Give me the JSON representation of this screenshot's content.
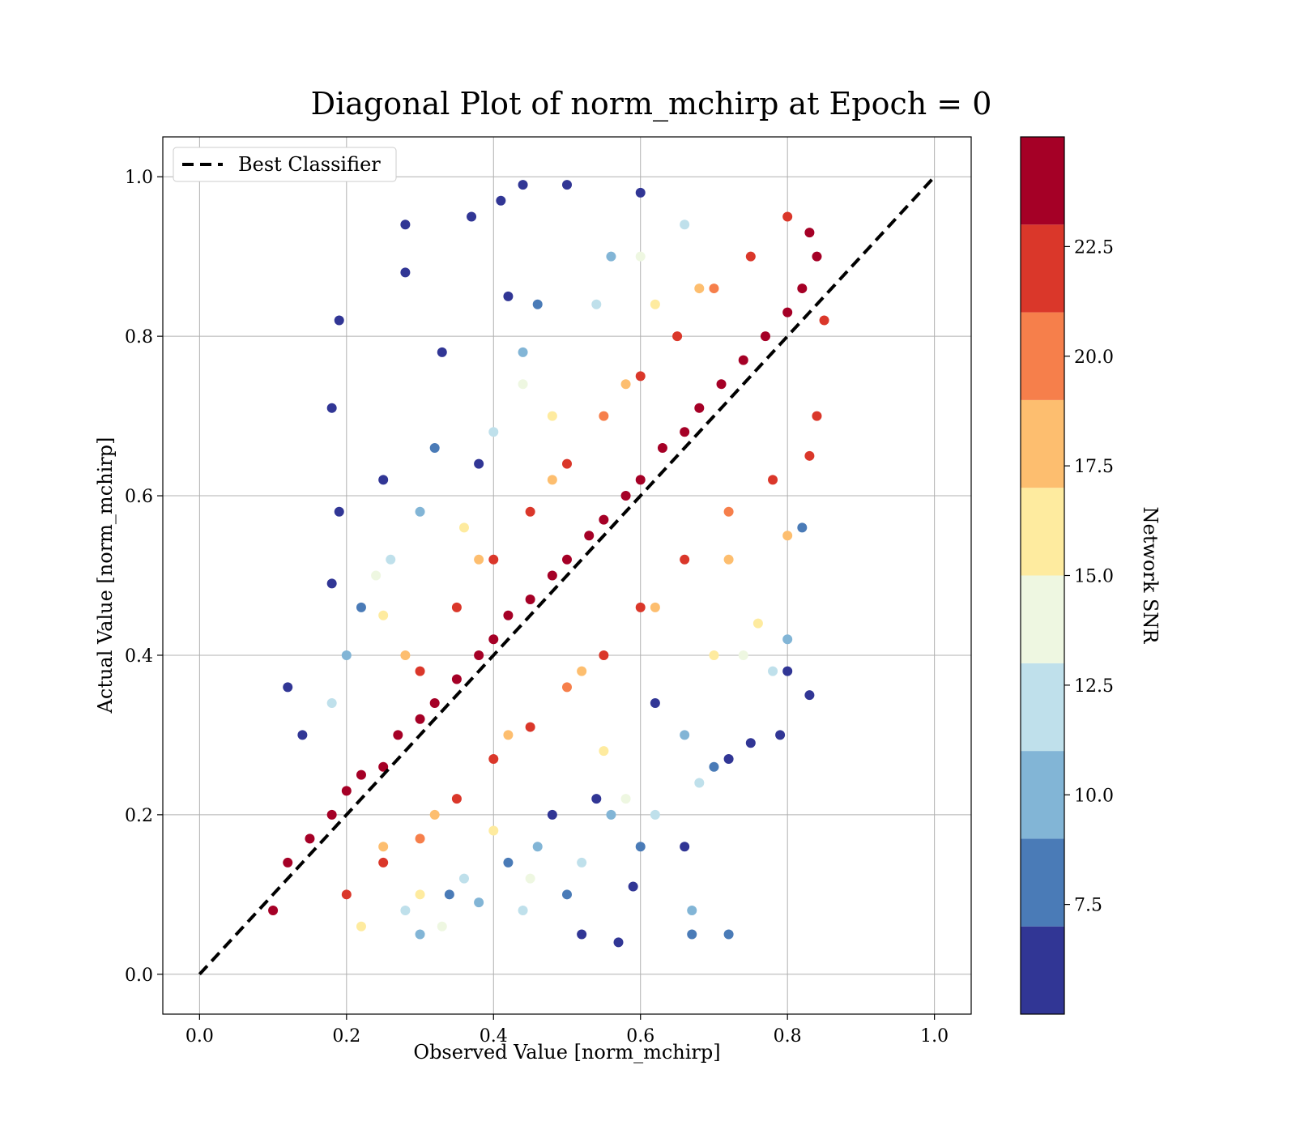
{
  "chart_data": {
    "type": "scatter",
    "title": "Diagonal Plot of norm_mchirp at Epoch = 0",
    "xlabel": "Observed Value [norm_mchirp]",
    "ylabel": "Actual Value [norm_mchirp]",
    "xlim": [
      -0.05,
      1.05
    ],
    "ylim": [
      -0.05,
      1.05
    ],
    "x_ticks": [
      "0.0",
      "0.2",
      "0.4",
      "0.6",
      "0.8",
      "1.0"
    ],
    "y_ticks": [
      "0.0",
      "0.2",
      "0.4",
      "0.6",
      "0.8",
      "1.0"
    ],
    "grid": true,
    "legend": {
      "placement": "top-left",
      "entries": [
        {
          "label": "Best Classifier",
          "style": "dashed",
          "color": "#000000"
        }
      ]
    },
    "reference_line": {
      "name": "Best Classifier",
      "x": [
        0.0,
        1.0
      ],
      "y": [
        0.0,
        1.0
      ]
    },
    "colorbar": {
      "label": "Network SNR",
      "range": [
        5.0,
        25.0
      ],
      "bins": [
        {
          "from": 5.0,
          "to": 7.0,
          "color": "#313695"
        },
        {
          "from": 7.0,
          "to": 9.0,
          "color": "#4a7bb7"
        },
        {
          "from": 9.0,
          "to": 11.0,
          "color": "#82b5d6"
        },
        {
          "from": 11.0,
          "to": 13.0,
          "color": "#bfe0eb"
        },
        {
          "from": 13.0,
          "to": 15.0,
          "color": "#eef7e1"
        },
        {
          "from": 15.0,
          "to": 17.0,
          "color": "#feeb9f"
        },
        {
          "from": 17.0,
          "to": 19.0,
          "color": "#fdbe6f"
        },
        {
          "from": 19.0,
          "to": 21.0,
          "color": "#f67f4b"
        },
        {
          "from": 21.0,
          "to": 23.0,
          "color": "#da372a"
        },
        {
          "from": 23.0,
          "to": 25.0,
          "color": "#a50026"
        }
      ],
      "tick_values": [
        7.5,
        10.0,
        12.5,
        15.0,
        17.5,
        20.0,
        22.5
      ],
      "tick_labels": [
        "7.5",
        "10.0",
        "12.5",
        "15.0",
        "17.5",
        "20.0",
        "22.5"
      ]
    },
    "points": [
      {
        "x": 0.1,
        "y": 0.08,
        "snr": 24
      },
      {
        "x": 0.12,
        "y": 0.14,
        "snr": 24
      },
      {
        "x": 0.15,
        "y": 0.17,
        "snr": 24
      },
      {
        "x": 0.18,
        "y": 0.2,
        "snr": 23
      },
      {
        "x": 0.2,
        "y": 0.23,
        "snr": 24
      },
      {
        "x": 0.22,
        "y": 0.25,
        "snr": 24
      },
      {
        "x": 0.25,
        "y": 0.26,
        "snr": 24
      },
      {
        "x": 0.27,
        "y": 0.3,
        "snr": 24
      },
      {
        "x": 0.3,
        "y": 0.32,
        "snr": 24
      },
      {
        "x": 0.32,
        "y": 0.34,
        "snr": 24
      },
      {
        "x": 0.35,
        "y": 0.37,
        "snr": 24
      },
      {
        "x": 0.38,
        "y": 0.4,
        "snr": 24
      },
      {
        "x": 0.4,
        "y": 0.42,
        "snr": 24
      },
      {
        "x": 0.42,
        "y": 0.45,
        "snr": 24
      },
      {
        "x": 0.45,
        "y": 0.47,
        "snr": 24
      },
      {
        "x": 0.48,
        "y": 0.5,
        "snr": 24
      },
      {
        "x": 0.5,
        "y": 0.52,
        "snr": 24
      },
      {
        "x": 0.53,
        "y": 0.55,
        "snr": 24
      },
      {
        "x": 0.55,
        "y": 0.57,
        "snr": 24
      },
      {
        "x": 0.58,
        "y": 0.6,
        "snr": 24
      },
      {
        "x": 0.6,
        "y": 0.62,
        "snr": 24
      },
      {
        "x": 0.63,
        "y": 0.66,
        "snr": 24
      },
      {
        "x": 0.66,
        "y": 0.68,
        "snr": 24
      },
      {
        "x": 0.68,
        "y": 0.71,
        "snr": 24
      },
      {
        "x": 0.71,
        "y": 0.74,
        "snr": 24
      },
      {
        "x": 0.74,
        "y": 0.77,
        "snr": 24
      },
      {
        "x": 0.77,
        "y": 0.8,
        "snr": 24
      },
      {
        "x": 0.8,
        "y": 0.83,
        "snr": 24
      },
      {
        "x": 0.82,
        "y": 0.86,
        "snr": 24
      },
      {
        "x": 0.84,
        "y": 0.9,
        "snr": 24
      },
      {
        "x": 0.8,
        "y": 0.95,
        "snr": 22
      },
      {
        "x": 0.83,
        "y": 0.93,
        "snr": 23
      },
      {
        "x": 0.85,
        "y": 0.82,
        "snr": 22
      },
      {
        "x": 0.84,
        "y": 0.7,
        "snr": 22
      },
      {
        "x": 0.83,
        "y": 0.65,
        "snr": 21
      },
      {
        "x": 0.78,
        "y": 0.62,
        "snr": 22
      },
      {
        "x": 0.72,
        "y": 0.58,
        "snr": 20
      },
      {
        "x": 0.66,
        "y": 0.52,
        "snr": 21
      },
      {
        "x": 0.6,
        "y": 0.46,
        "snr": 22
      },
      {
        "x": 0.55,
        "y": 0.4,
        "snr": 21
      },
      {
        "x": 0.5,
        "y": 0.36,
        "snr": 20
      },
      {
        "x": 0.45,
        "y": 0.31,
        "snr": 22
      },
      {
        "x": 0.4,
        "y": 0.27,
        "snr": 21
      },
      {
        "x": 0.35,
        "y": 0.22,
        "snr": 22
      },
      {
        "x": 0.3,
        "y": 0.17,
        "snr": 20
      },
      {
        "x": 0.25,
        "y": 0.14,
        "snr": 22
      },
      {
        "x": 0.2,
        "y": 0.1,
        "snr": 21
      },
      {
        "x": 0.3,
        "y": 0.38,
        "snr": 21
      },
      {
        "x": 0.35,
        "y": 0.46,
        "snr": 22
      },
      {
        "x": 0.4,
        "y": 0.52,
        "snr": 21
      },
      {
        "x": 0.45,
        "y": 0.58,
        "snr": 22
      },
      {
        "x": 0.5,
        "y": 0.64,
        "snr": 21
      },
      {
        "x": 0.55,
        "y": 0.7,
        "snr": 20
      },
      {
        "x": 0.6,
        "y": 0.75,
        "snr": 22
      },
      {
        "x": 0.65,
        "y": 0.8,
        "snr": 21
      },
      {
        "x": 0.7,
        "y": 0.86,
        "snr": 20
      },
      {
        "x": 0.75,
        "y": 0.9,
        "snr": 22
      },
      {
        "x": 0.25,
        "y": 0.16,
        "snr": 18
      },
      {
        "x": 0.32,
        "y": 0.2,
        "snr": 17
      },
      {
        "x": 0.42,
        "y": 0.3,
        "snr": 18
      },
      {
        "x": 0.52,
        "y": 0.38,
        "snr": 17
      },
      {
        "x": 0.62,
        "y": 0.46,
        "snr": 18
      },
      {
        "x": 0.72,
        "y": 0.52,
        "snr": 17
      },
      {
        "x": 0.8,
        "y": 0.55,
        "snr": 18
      },
      {
        "x": 0.28,
        "y": 0.4,
        "snr": 18
      },
      {
        "x": 0.38,
        "y": 0.52,
        "snr": 17
      },
      {
        "x": 0.48,
        "y": 0.62,
        "snr": 18
      },
      {
        "x": 0.58,
        "y": 0.74,
        "snr": 17
      },
      {
        "x": 0.68,
        "y": 0.86,
        "snr": 18
      },
      {
        "x": 0.22,
        "y": 0.06,
        "snr": 16
      },
      {
        "x": 0.3,
        "y": 0.1,
        "snr": 16
      },
      {
        "x": 0.4,
        "y": 0.18,
        "snr": 15
      },
      {
        "x": 0.55,
        "y": 0.28,
        "snr": 16
      },
      {
        "x": 0.7,
        "y": 0.4,
        "snr": 15
      },
      {
        "x": 0.76,
        "y": 0.44,
        "snr": 16
      },
      {
        "x": 0.25,
        "y": 0.45,
        "snr": 15
      },
      {
        "x": 0.36,
        "y": 0.56,
        "snr": 16
      },
      {
        "x": 0.48,
        "y": 0.7,
        "snr": 15
      },
      {
        "x": 0.62,
        "y": 0.84,
        "snr": 16
      },
      {
        "x": 0.33,
        "y": 0.06,
        "snr": 14
      },
      {
        "x": 0.45,
        "y": 0.12,
        "snr": 13
      },
      {
        "x": 0.58,
        "y": 0.22,
        "snr": 14
      },
      {
        "x": 0.74,
        "y": 0.4,
        "snr": 14
      },
      {
        "x": 0.24,
        "y": 0.5,
        "snr": 14
      },
      {
        "x": 0.44,
        "y": 0.74,
        "snr": 13
      },
      {
        "x": 0.6,
        "y": 0.9,
        "snr": 14
      },
      {
        "x": 0.28,
        "y": 0.08,
        "snr": 12
      },
      {
        "x": 0.36,
        "y": 0.12,
        "snr": 12
      },
      {
        "x": 0.44,
        "y": 0.08,
        "snr": 11
      },
      {
        "x": 0.52,
        "y": 0.14,
        "snr": 12
      },
      {
        "x": 0.62,
        "y": 0.2,
        "snr": 12
      },
      {
        "x": 0.68,
        "y": 0.24,
        "snr": 11
      },
      {
        "x": 0.78,
        "y": 0.38,
        "snr": 12
      },
      {
        "x": 0.18,
        "y": 0.34,
        "snr": 12
      },
      {
        "x": 0.26,
        "y": 0.52,
        "snr": 11
      },
      {
        "x": 0.4,
        "y": 0.68,
        "snr": 12
      },
      {
        "x": 0.54,
        "y": 0.84,
        "snr": 11
      },
      {
        "x": 0.66,
        "y": 0.94,
        "snr": 12
      },
      {
        "x": 0.3,
        "y": 0.05,
        "snr": 10
      },
      {
        "x": 0.38,
        "y": 0.09,
        "snr": 9
      },
      {
        "x": 0.46,
        "y": 0.16,
        "snr": 10
      },
      {
        "x": 0.56,
        "y": 0.2,
        "snr": 9
      },
      {
        "x": 0.66,
        "y": 0.3,
        "snr": 10
      },
      {
        "x": 0.8,
        "y": 0.42,
        "snr": 9
      },
      {
        "x": 0.67,
        "y": 0.08,
        "snr": 10
      },
      {
        "x": 0.2,
        "y": 0.4,
        "snr": 10
      },
      {
        "x": 0.3,
        "y": 0.58,
        "snr": 9
      },
      {
        "x": 0.44,
        "y": 0.78,
        "snr": 10
      },
      {
        "x": 0.56,
        "y": 0.9,
        "snr": 9
      },
      {
        "x": 0.34,
        "y": 0.1,
        "snr": 8
      },
      {
        "x": 0.42,
        "y": 0.14,
        "snr": 8
      },
      {
        "x": 0.5,
        "y": 0.1,
        "snr": 7
      },
      {
        "x": 0.6,
        "y": 0.16,
        "snr": 8
      },
      {
        "x": 0.7,
        "y": 0.26,
        "snr": 8
      },
      {
        "x": 0.67,
        "y": 0.05,
        "snr": 8
      },
      {
        "x": 0.72,
        "y": 0.05,
        "snr": 7
      },
      {
        "x": 0.82,
        "y": 0.56,
        "snr": 8
      },
      {
        "x": 0.22,
        "y": 0.46,
        "snr": 8
      },
      {
        "x": 0.32,
        "y": 0.66,
        "snr": 7
      },
      {
        "x": 0.46,
        "y": 0.84,
        "snr": 8
      },
      {
        "x": 0.12,
        "y": 0.36,
        "snr": 6
      },
      {
        "x": 0.18,
        "y": 0.49,
        "snr": 6
      },
      {
        "x": 0.19,
        "y": 0.58,
        "snr": 6
      },
      {
        "x": 0.18,
        "y": 0.71,
        "snr": 6
      },
      {
        "x": 0.19,
        "y": 0.82,
        "snr": 6
      },
      {
        "x": 0.28,
        "y": 0.94,
        "snr": 6
      },
      {
        "x": 0.28,
        "y": 0.88,
        "snr": 6
      },
      {
        "x": 0.37,
        "y": 0.95,
        "snr": 6
      },
      {
        "x": 0.41,
        "y": 0.97,
        "snr": 6
      },
      {
        "x": 0.44,
        "y": 0.99,
        "snr": 6
      },
      {
        "x": 0.5,
        "y": 0.99,
        "snr": 6
      },
      {
        "x": 0.57,
        "y": 0.04,
        "snr": 6
      },
      {
        "x": 0.59,
        "y": 0.11,
        "snr": 6
      },
      {
        "x": 0.66,
        "y": 0.16,
        "snr": 6
      },
      {
        "x": 0.72,
        "y": 0.27,
        "snr": 6
      },
      {
        "x": 0.75,
        "y": 0.29,
        "snr": 6
      },
      {
        "x": 0.79,
        "y": 0.3,
        "snr": 6
      },
      {
        "x": 0.8,
        "y": 0.38,
        "snr": 6
      },
      {
        "x": 0.83,
        "y": 0.35,
        "snr": 6
      },
      {
        "x": 0.54,
        "y": 0.22,
        "snr": 6
      },
      {
        "x": 0.62,
        "y": 0.34,
        "snr": 6
      },
      {
        "x": 0.33,
        "y": 0.78,
        "snr": 6
      },
      {
        "x": 0.38,
        "y": 0.64,
        "snr": 6
      },
      {
        "x": 0.25,
        "y": 0.62,
        "snr": 6
      },
      {
        "x": 0.14,
        "y": 0.3,
        "snr": 6
      },
      {
        "x": 0.48,
        "y": 0.2,
        "snr": 6
      },
      {
        "x": 0.52,
        "y": 0.05,
        "snr": 6
      },
      {
        "x": 0.42,
        "y": 0.85,
        "snr": 6
      },
      {
        "x": 0.6,
        "y": 0.98,
        "snr": 6
      }
    ]
  }
}
